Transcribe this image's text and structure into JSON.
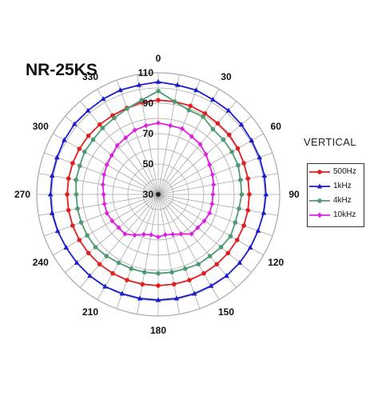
{
  "title": "NR-25KS",
  "legend_title": "VERTICAL",
  "colors": {
    "500Hz": "#e02020",
    "1kHz": "#1a1ad0",
    "4kHz": "#4f9a72",
    "10kHz": "#e020e0",
    "grid": "#a8a8a8",
    "axis_text": "#111111"
  },
  "chart_data": {
    "type": "polar-line",
    "title": "NR-25KS",
    "orientation": "VERTICAL",
    "angle_unit": "degrees",
    "angle_step": 10,
    "angle_labels": [
      "0",
      "30",
      "60",
      "90",
      "120",
      "150",
      "180",
      "210",
      "240",
      "270",
      "300",
      "330"
    ],
    "radial_range": [
      30,
      110
    ],
    "radial_ticks": [
      30,
      50,
      70,
      90,
      110
    ],
    "grid": true,
    "legend_position": "right",
    "angles": [
      0,
      10,
      20,
      30,
      40,
      50,
      60,
      70,
      80,
      90,
      100,
      110,
      120,
      130,
      140,
      150,
      160,
      170,
      180,
      190,
      200,
      210,
      220,
      230,
      240,
      250,
      260,
      270,
      280,
      290,
      300,
      310,
      320,
      330,
      340,
      350
    ],
    "series": [
      {
        "name": "500Hz",
        "marker": "circle",
        "values": [
          92,
          92,
          92,
          91.5,
          91,
          91,
          90.5,
          90,
          90,
          90,
          90,
          90,
          90,
          90,
          90,
          90,
          90,
          90,
          90,
          90,
          90,
          90,
          90,
          90,
          90,
          90,
          90,
          90,
          90,
          90,
          90,
          90,
          90,
          90,
          90.5,
          91.5
        ]
      },
      {
        "name": "1kHz",
        "marker": "triangle",
        "values": [
          104,
          103,
          103,
          102,
          102,
          101.5,
          101,
          101,
          101,
          101,
          100.5,
          100,
          100,
          100,
          100,
          99.5,
          99.5,
          99.5,
          99.5,
          99.5,
          99.5,
          100,
          100,
          100,
          100,
          100.5,
          101,
          101,
          101,
          101,
          101.5,
          102,
          102,
          102.5,
          103,
          103
        ]
      },
      {
        "name": "4kHz",
        "marker": "circle",
        "values": [
          98,
          92,
          89,
          89,
          86,
          86,
          86,
          86,
          85,
          85,
          84,
          84,
          85,
          84,
          83,
          83,
          82,
          82,
          82,
          82,
          82,
          82,
          83,
          84,
          84,
          84,
          84,
          84,
          85,
          85,
          86,
          86,
          87,
          88,
          90,
          93
        ]
      },
      {
        "name": "10kHz",
        "marker": "diamond",
        "values": [
          77,
          76,
          76,
          74,
          73,
          71,
          69,
          68,
          67,
          66,
          66,
          66,
          65,
          64,
          64,
          60,
          58,
          57,
          58,
          57,
          58,
          61,
          64,
          64,
          65,
          66,
          66,
          66,
          67,
          68,
          69,
          70,
          72,
          73,
          75,
          76
        ]
      }
    ]
  }
}
